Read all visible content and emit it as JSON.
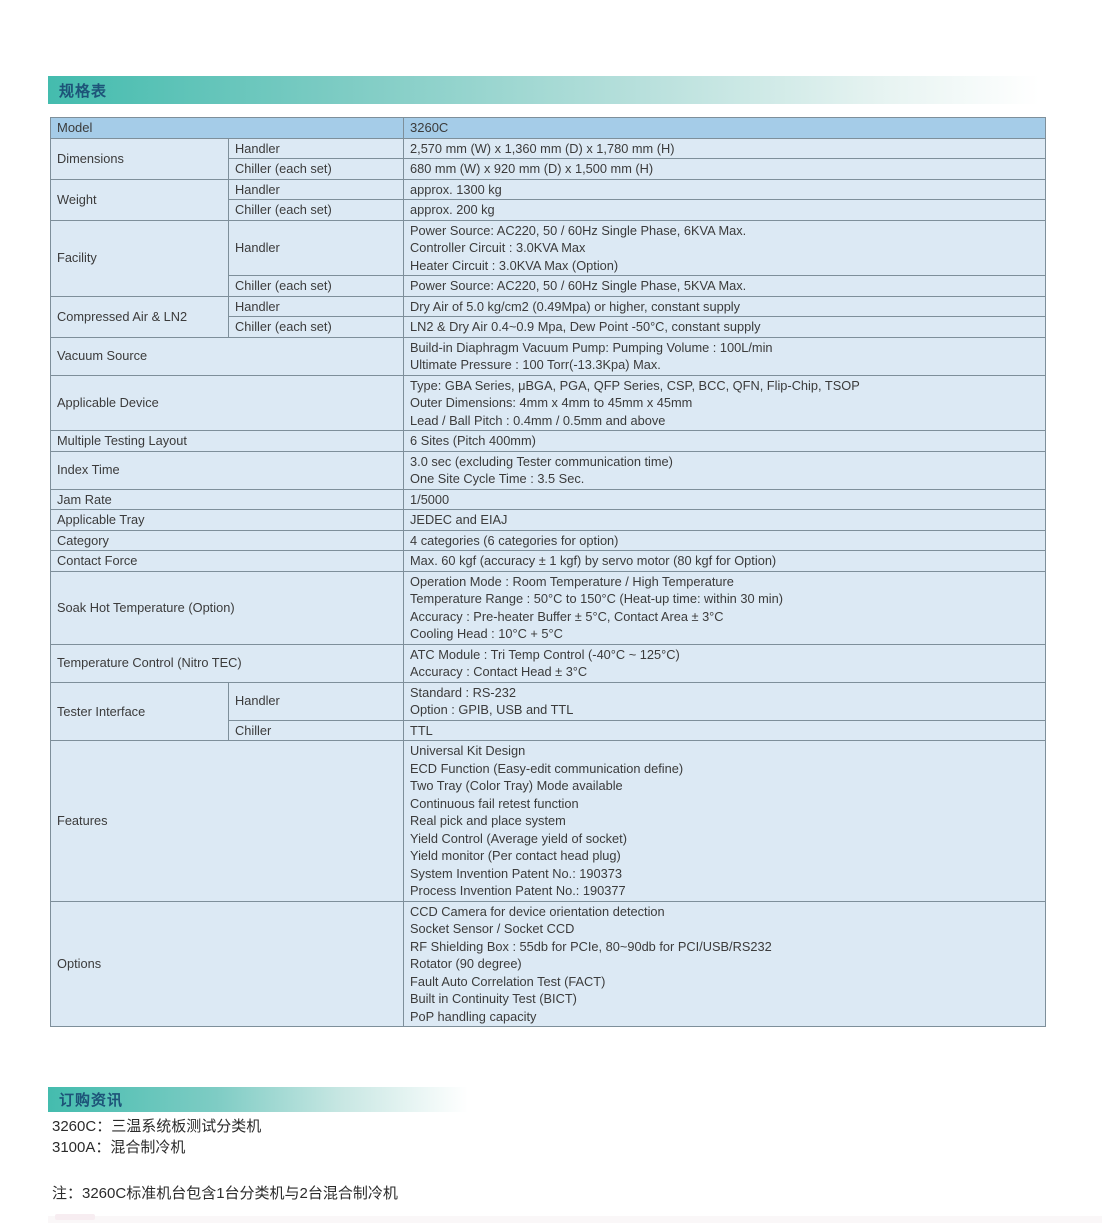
{
  "sections": {
    "spec_title": "规格表",
    "order_title": "订购资讯"
  },
  "ordering": {
    "lines": [
      "3260C：三温系统板测试分类机",
      "3100A：混合制冷机"
    ],
    "note": "注：3260C标准机台包含1台分类机与2台混合制冷机"
  },
  "colors": {
    "header_teal": "#44bcae",
    "section_title_text": "#1d5378",
    "table_header_bg": "#a5cce8",
    "table_cell_bg": "#dce9f4",
    "table_border": "#7e8f9a",
    "body_text": "#3b3b3b"
  },
  "spec_table": {
    "header": {
      "label": "Model",
      "value": "3260C"
    },
    "rows": [
      {
        "label": "Dimensions",
        "subrows": [
          {
            "sub": "Handler",
            "lines": [
              "2,570 mm (W) x 1,360 mm (D) x 1,780 mm (H)"
            ]
          },
          {
            "sub": "Chiller (each set)",
            "lines": [
              "680 mm (W) x 920 mm (D) x 1,500 mm (H)"
            ]
          }
        ]
      },
      {
        "label": "Weight",
        "subrows": [
          {
            "sub": "Handler",
            "lines": [
              "approx. 1300 kg"
            ]
          },
          {
            "sub": "Chiller (each set)",
            "lines": [
              "approx. 200 kg"
            ]
          }
        ]
      },
      {
        "label": "Facility",
        "subrows": [
          {
            "sub": "Handler",
            "lines": [
              "Power Source: AC220, 50 / 60Hz Single Phase, 6KVA Max.",
              "Controller Circuit : 3.0KVA Max",
              "Heater Circuit : 3.0KVA Max (Option)"
            ]
          },
          {
            "sub": "Chiller (each set)",
            "lines": [
              "Power Source: AC220, 50 / 60Hz Single Phase, 5KVA Max."
            ]
          }
        ]
      },
      {
        "label": "Compressed Air & LN2",
        "subrows": [
          {
            "sub": "Handler",
            "lines": [
              "Dry Air of 5.0 kg/cm2 (0.49Mpa) or higher, constant supply"
            ]
          },
          {
            "sub": "Chiller (each set)",
            "lines": [
              "LN2 & Dry Air 0.4~0.9 Mpa, Dew Point -50°C, constant supply"
            ]
          }
        ]
      },
      {
        "label": "Vacuum Source",
        "lines": [
          "Build-in Diaphragm Vacuum Pump: Pumping Volume : 100L/min",
          "Ultimate Pressure : 100 Torr(-13.3Kpa) Max."
        ]
      },
      {
        "label": "Applicable Device",
        "lines": [
          "Type: GBA Series, μBGA, PGA, QFP Series, CSP, BCC, QFN, Flip-Chip, TSOP",
          "Outer Dimensions: 4mm x 4mm to 45mm x 45mm",
          "Lead / Ball Pitch : 0.4mm / 0.5mm and above"
        ]
      },
      {
        "label": "Multiple Testing Layout",
        "lines": [
          "6 Sites (Pitch 400mm)"
        ]
      },
      {
        "label": "Index Time",
        "lines": [
          "3.0 sec (excluding Tester communication time)",
          "One Site Cycle Time : 3.5 Sec."
        ]
      },
      {
        "label": "Jam Rate",
        "lines": [
          "1/5000"
        ]
      },
      {
        "label": "Applicable Tray",
        "lines": [
          "JEDEC and EIAJ"
        ]
      },
      {
        "label": "Category",
        "lines": [
          "4 categories (6 categories for option)"
        ]
      },
      {
        "label": "Contact Force",
        "lines": [
          "Max. 60 kgf  (accuracy ± 1 kgf) by servo motor (80 kgf for Option)"
        ]
      },
      {
        "label": "Soak Hot Temperature (Option)",
        "lines": [
          "Operation Mode : Room Temperature / High Temperature",
          "Temperature Range : 50°C to 150°C (Heat-up time: within 30 min)",
          "Accuracy : Pre-heater Buffer ± 5°C, Contact Area ± 3°C",
          "Cooling Head : 10°C + 5°C"
        ]
      },
      {
        "label": "Temperature Control (Nitro TEC)",
        "lines": [
          "ATC Module : Tri Temp Control (-40°C ~ 125°C)",
          "Accuracy : Contact Head ± 3°C"
        ]
      },
      {
        "label": "Tester Interface",
        "subrows": [
          {
            "sub": "Handler",
            "lines": [
              "Standard : RS-232",
              "Option : GPIB, USB and TTL"
            ]
          },
          {
            "sub": "Chiller",
            "lines": [
              "TTL"
            ]
          }
        ]
      },
      {
        "label": "Features",
        "lines": [
          "Universal Kit Design",
          "ECD Function (Easy-edit communication define)",
          "Two Tray (Color Tray) Mode available",
          "Continuous fail retest function",
          "Real pick and place system",
          "Yield Control (Average yield of socket)",
          "Yield monitor (Per contact head plug)",
          "System Invention Patent No.: 190373",
          "Process Invention Patent No.: 190377"
        ]
      },
      {
        "label": "Options",
        "lines": [
          "CCD Camera for device orientation detection",
          "Socket Sensor / Socket CCD",
          "RF Shielding Box : 55db for PCIe, 80~90db for PCI/USB/RS232",
          "Rotator (90 degree)",
          "Fault Auto Correlation Test (FACT)",
          "Built in Continuity Test (BICT)",
          "PoP handling capacity"
        ]
      }
    ]
  }
}
